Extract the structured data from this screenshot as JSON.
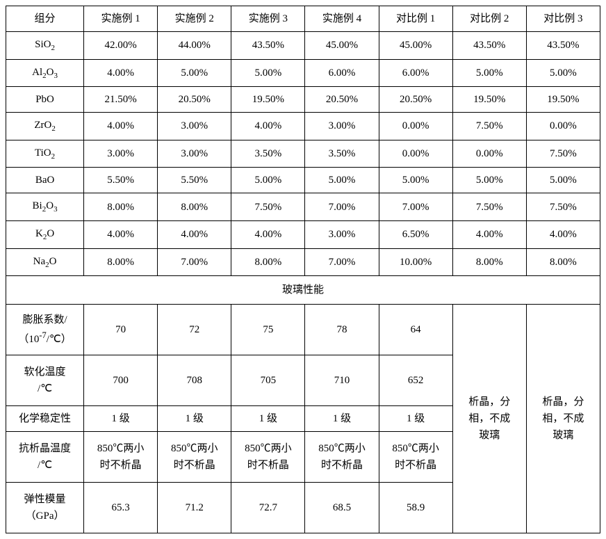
{
  "columns": [
    "组分",
    "实施例 1",
    "实施例 2",
    "实施例 3",
    "实施例 4",
    "对比例 1",
    "对比例 2",
    "对比例 3"
  ],
  "comp_rows": [
    {
      "label": "SiO₂",
      "vals": [
        "42.00%",
        "44.00%",
        "43.50%",
        "45.00%",
        "45.00%",
        "43.50%",
        "43.50%"
      ]
    },
    {
      "label": "Al₂O₃",
      "vals": [
        "4.00%",
        "5.00%",
        "5.00%",
        "6.00%",
        "6.00%",
        "5.00%",
        "5.00%"
      ]
    },
    {
      "label": "PbO",
      "vals": [
        "21.50%",
        "20.50%",
        "19.50%",
        "20.50%",
        "20.50%",
        "19.50%",
        "19.50%"
      ]
    },
    {
      "label": "ZrO₂",
      "vals": [
        "4.00%",
        "3.00%",
        "4.00%",
        "3.00%",
        "0.00%",
        "7.50%",
        "0.00%"
      ]
    },
    {
      "label": "TiO₂",
      "vals": [
        "3.00%",
        "3.00%",
        "3.50%",
        "3.50%",
        "0.00%",
        "0.00%",
        "7.50%"
      ]
    },
    {
      "label": "BaO",
      "vals": [
        "5.50%",
        "5.50%",
        "5.00%",
        "5.00%",
        "5.00%",
        "5.00%",
        "5.00%"
      ]
    },
    {
      "label": "Bi₂O₃",
      "vals": [
        "8.00%",
        "8.00%",
        "7.50%",
        "7.00%",
        "7.00%",
        "7.50%",
        "7.50%"
      ]
    },
    {
      "label": "K₂O",
      "vals": [
        "4.00%",
        "4.00%",
        "4.00%",
        "3.00%",
        "6.50%",
        "4.00%",
        "4.00%"
      ]
    },
    {
      "label": "Na₂O",
      "vals": [
        "8.00%",
        "7.00%",
        "8.00%",
        "7.00%",
        "10.00%",
        "8.00%",
        "8.00%"
      ]
    }
  ],
  "section_label": "玻璃性能",
  "perf_rows": [
    {
      "label_lines": [
        "膨胀系数/",
        "（10⁻⁷/℃）"
      ],
      "vals": [
        "70",
        "72",
        "75",
        "78",
        "64"
      ]
    },
    {
      "label_lines": [
        "软化温度",
        "/℃"
      ],
      "vals": [
        "700",
        "708",
        "705",
        "710",
        "652"
      ]
    },
    {
      "label_lines": [
        "化学稳定性"
      ],
      "vals": [
        "1 级",
        "1 级",
        "1 级",
        "1 级",
        "1 级"
      ]
    },
    {
      "label_lines": [
        "抗析晶温度",
        "/℃"
      ],
      "vals": [
        "850℃两小时不析晶",
        "850℃两小时不析晶",
        "850℃两小时不析晶",
        "850℃两小时不析晶",
        "850℃两小时不析晶"
      ]
    },
    {
      "label_lines": [
        "弹性模量",
        "（GPa）"
      ],
      "vals": [
        "65.3",
        "71.2",
        "72.7",
        "68.5",
        "58.9"
      ]
    }
  ],
  "merged_note_lines": [
    "析晶，分",
    "相，不成",
    "玻璃"
  ],
  "style": {
    "border_color": "#000000",
    "background": "#ffffff",
    "font_size_pt": 15
  }
}
